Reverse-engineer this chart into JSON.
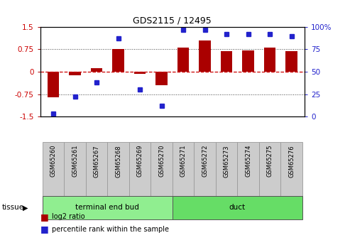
{
  "title": "GDS2115 / 12495",
  "samples": [
    "GSM65260",
    "GSM65261",
    "GSM65267",
    "GSM65268",
    "GSM65269",
    "GSM65270",
    "GSM65271",
    "GSM65272",
    "GSM65273",
    "GSM65274",
    "GSM65275",
    "GSM65276"
  ],
  "log2_ratio": [
    -0.85,
    -0.13,
    0.12,
    0.75,
    -0.07,
    -0.45,
    0.82,
    1.05,
    0.68,
    0.72,
    0.82,
    0.7
  ],
  "percentile_rank": [
    3,
    22,
    38,
    87,
    30,
    12,
    97,
    97,
    92,
    92,
    92,
    90
  ],
  "groups": [
    {
      "label": "terminal end bud",
      "start": 0,
      "end": 6,
      "color": "#90EE90"
    },
    {
      "label": "duct",
      "start": 6,
      "end": 12,
      "color": "#66DD66"
    }
  ],
  "ylim_left": [
    -1.5,
    1.5
  ],
  "ylim_right": [
    0,
    100
  ],
  "bar_color": "#AA0000",
  "dot_color": "#2222CC",
  "zero_line_color": "#CC0000",
  "grid_color": "#444444",
  "left_tick_labels": [
    "-1.5",
    "-0.75",
    "0",
    "0.75",
    "1.5"
  ],
  "left_tick_vals": [
    -1.5,
    -0.75,
    0,
    0.75,
    1.5
  ],
  "right_tick_labels": [
    "0",
    "25",
    "50",
    "75",
    "100%"
  ],
  "right_tick_vals": [
    0,
    25,
    50,
    75,
    100
  ],
  "legend_log2_label": "log2 ratio",
  "legend_pct_label": "percentile rank within the sample",
  "tissue_label": "tissue",
  "sample_bg_color": "#CCCCCC",
  "sample_border_color": "#999999"
}
